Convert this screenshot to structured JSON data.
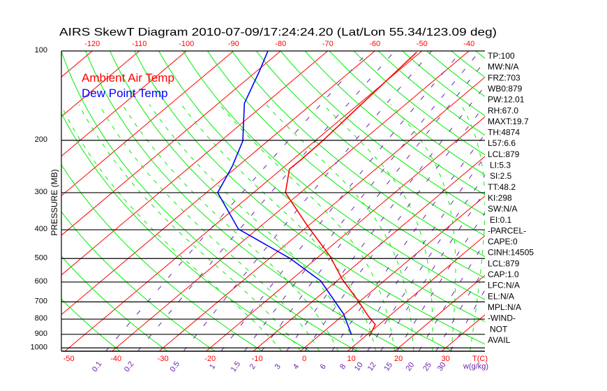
{
  "chart_data": {
    "type": "line",
    "title": "AIRS SkewT Diagram 2010-07-09/17:24:24.20 (Lat/Lon 55.34/123.09 deg)",
    "ylabel": "PRESSURE (MB)",
    "xlabel": "T(C)",
    "mixing_ratio_label": "w(g/kg)",
    "pressure_ticks": [
      100,
      200,
      300,
      400,
      500,
      600,
      700,
      800,
      900,
      1000
    ],
    "pressure_tick_labels": [
      "100",
      "200",
      "300",
      "400",
      "500",
      "600",
      "700",
      "800",
      "900",
      "1000"
    ],
    "top_temp_ticks": [
      "-120",
      "-110",
      "-100",
      "-90",
      "-80",
      "-70",
      "-60",
      "-50",
      "-40"
    ],
    "bottom_temp_ticks": [
      "-50",
      "-40",
      "-30",
      "-20",
      "-10",
      "0",
      "10",
      "20",
      "30"
    ],
    "mixing_ratio_ticks": [
      "0.1",
      "0.2",
      "0.5",
      "1",
      "1.5",
      "2",
      "3",
      "4",
      "6",
      "8",
      "10",
      "12",
      "15",
      "20",
      "25",
      "30"
    ],
    "ylim": [
      1025,
      100
    ],
    "legend": [
      {
        "name": "Ambient Air Temp",
        "color": "#ff0000"
      },
      {
        "name": "Dew Point Temp",
        "color": "#0000ff"
      }
    ],
    "legend_position": "top-left",
    "series": [
      {
        "name": "Ambient Air Temp",
        "color": "#ff0000",
        "points": [
          {
            "p": 101,
            "t": -50.8
          },
          {
            "p": 201,
            "t": -48.4
          },
          {
            "p": 234,
            "t": -48.2
          },
          {
            "p": 250,
            "t": -48.3
          },
          {
            "p": 300,
            "t": -43.2
          },
          {
            "p": 319,
            "t": -40.1
          },
          {
            "p": 387,
            "t": -30.3
          },
          {
            "p": 491,
            "t": -17.7
          },
          {
            "p": 587,
            "t": -9.3
          },
          {
            "p": 691,
            "t": -0.7
          },
          {
            "p": 782,
            "t": 5.6
          },
          {
            "p": 835,
            "t": 9.2
          },
          {
            "p": 915,
            "t": 10.9
          }
        ]
      },
      {
        "name": "Dew Point Temp",
        "color": "#0000ff",
        "points": [
          {
            "p": 100,
            "t": -82.7
          },
          {
            "p": 117,
            "t": -79.4
          },
          {
            "p": 150,
            "t": -74.5
          },
          {
            "p": 201,
            "t": -65.3
          },
          {
            "p": 244,
            "t": -61.2
          },
          {
            "p": 300,
            "t": -57.6
          },
          {
            "p": 398,
            "t": -44.0
          },
          {
            "p": 499,
            "t": -25.7
          },
          {
            "p": 595,
            "t": -13.4
          },
          {
            "p": 769,
            "t": -0.2
          },
          {
            "p": 903,
            "t": 6.7
          }
        ]
      }
    ],
    "stats": [
      "TP:100",
      "MW:N/A",
      "FRZ:703",
      "WB0:879",
      "PW:12.01",
      "RH:67.0",
      "MAXT:19.7",
      "TH:4874",
      "L57:6.6",
      "LCL:879",
      "LI:5.3",
      "SI:2.5",
      "TT:48.2",
      "KI:298",
      "SW:N/A",
      "EI:0.1",
      "-PARCEL-",
      "CAPE:0",
      "CINH:14505",
      "LCL:879",
      "CAP:1.0",
      "LFC:N/A",
      "EL:N/A",
      "MPL:N/A",
      "-WIND-",
      "NOT",
      "AVAIL"
    ],
    "colors": {
      "isotherm": "#ff0000",
      "dry_adiabat": "#00ee00",
      "moist_adiabat": "#00ee00",
      "mixing_ratio": "#6a1fb0",
      "axis": "#000000"
    }
  }
}
